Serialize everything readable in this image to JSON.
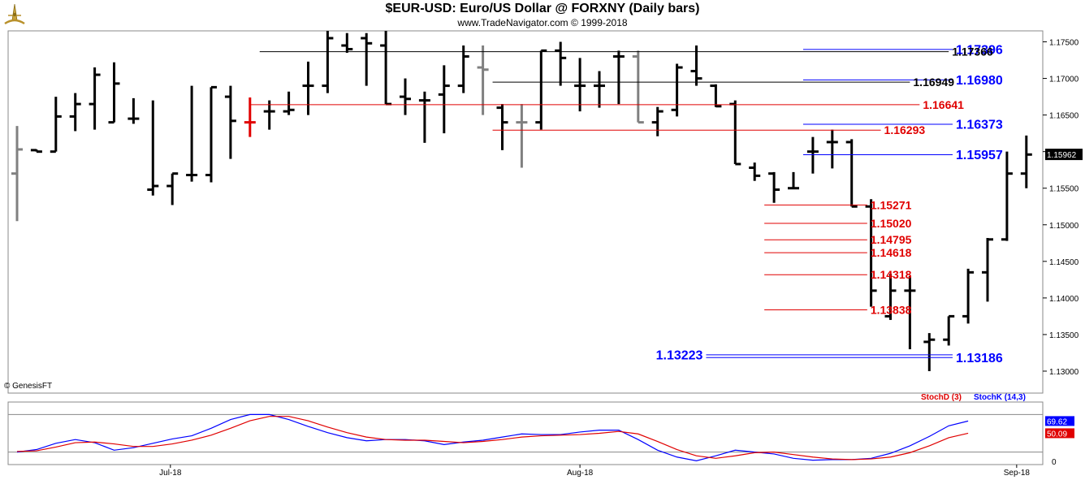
{
  "header": {
    "title": "$EUR-USD:  Euro/US Dollar @ FORXNY  (Daily bars)",
    "subtitle": "www.TradeNavigator.com © 1999-2018"
  },
  "watermark": "© GenesisFT",
  "colors": {
    "blue": "#0000ff",
    "red": "#e00000",
    "black": "#000000",
    "grey": "#808080",
    "frame": "#888888"
  },
  "chart_data": [
    {
      "type": "ohlc-bar",
      "ylim": [
        1.127,
        1.1765
      ],
      "yticks": [
        "1.17500",
        "1.17000",
        "1.16500",
        "1.16000",
        "1.15500",
        "1.15000",
        "1.14500",
        "1.14000",
        "1.13500",
        "1.13000"
      ],
      "ytick_values": [
        1.175,
        1.17,
        1.165,
        1.16,
        1.155,
        1.15,
        1.145,
        1.14,
        1.135,
        1.13
      ],
      "xticks": [
        {
          "label": "Jul-18",
          "index": 7.9
        },
        {
          "label": "Aug-18",
          "index": 29
        },
        {
          "label": "Sep-18",
          "index": 51.5
        }
      ],
      "last_price": "1.15962",
      "bars": [
        {
          "o": 1.157,
          "h": 1.1635,
          "l": 1.1505,
          "c": 1.1603,
          "col": "grey"
        },
        {
          "o": 1.1602,
          "h": 1.1603,
          "l": 1.16,
          "c": 1.16,
          "col": "black"
        },
        {
          "o": 1.16,
          "h": 1.1675,
          "l": 1.16,
          "c": 1.1648,
          "col": "black"
        },
        {
          "o": 1.1648,
          "h": 1.168,
          "l": 1.1628,
          "c": 1.1665,
          "col": "black"
        },
        {
          "o": 1.1665,
          "h": 1.1715,
          "l": 1.163,
          "c": 1.1705,
          "col": "black"
        },
        {
          "o": 1.164,
          "h": 1.1722,
          "l": 1.164,
          "c": 1.1693,
          "col": "black"
        },
        {
          "o": 1.1645,
          "h": 1.1673,
          "l": 1.1638,
          "c": 1.1645,
          "col": "black"
        },
        {
          "o": 1.1548,
          "h": 1.167,
          "l": 1.154,
          "c": 1.1553,
          "col": "black"
        },
        {
          "o": 1.1553,
          "h": 1.157,
          "l": 1.1527,
          "c": 1.157,
          "col": "black"
        },
        {
          "o": 1.1568,
          "h": 1.169,
          "l": 1.1559,
          "c": 1.1568,
          "col": "black"
        },
        {
          "o": 1.1568,
          "h": 1.1688,
          "l": 1.1558,
          "c": 1.1688,
          "col": "black"
        },
        {
          "o": 1.1675,
          "h": 1.169,
          "l": 1.159,
          "c": 1.1642,
          "col": "black"
        },
        {
          "o": 1.164,
          "h": 1.1674,
          "l": 1.162,
          "c": 1.164,
          "col": "red"
        },
        {
          "o": 1.1655,
          "h": 1.167,
          "l": 1.163,
          "c": 1.1655,
          "col": "black"
        },
        {
          "o": 1.1655,
          "h": 1.1682,
          "l": 1.165,
          "c": 1.1657,
          "col": "black"
        },
        {
          "o": 1.169,
          "h": 1.1723,
          "l": 1.165,
          "c": 1.169,
          "col": "black"
        },
        {
          "o": 1.169,
          "h": 1.1765,
          "l": 1.168,
          "c": 1.1755,
          "col": "black"
        },
        {
          "o": 1.1745,
          "h": 1.1762,
          "l": 1.1735,
          "c": 1.174,
          "col": "black"
        },
        {
          "o": 1.1755,
          "h": 1.1762,
          "l": 1.169,
          "c": 1.1748,
          "col": "black"
        },
        {
          "o": 1.1745,
          "h": 1.1765,
          "l": 1.1665,
          "c": 1.1665,
          "col": "black"
        },
        {
          "o": 1.1675,
          "h": 1.17,
          "l": 1.165,
          "c": 1.1672,
          "col": "black"
        },
        {
          "o": 1.167,
          "h": 1.1682,
          "l": 1.1612,
          "c": 1.167,
          "col": "black"
        },
        {
          "o": 1.1678,
          "h": 1.1718,
          "l": 1.1625,
          "c": 1.169,
          "col": "black"
        },
        {
          "o": 1.169,
          "h": 1.1745,
          "l": 1.168,
          "c": 1.173,
          "col": "black"
        },
        {
          "o": 1.1715,
          "h": 1.1745,
          "l": 1.165,
          "c": 1.1712,
          "col": "grey"
        },
        {
          "o": 1.166,
          "h": 1.1665,
          "l": 1.1602,
          "c": 1.164,
          "col": "black"
        },
        {
          "o": 1.164,
          "h": 1.1665,
          "l": 1.1578,
          "c": 1.164,
          "col": "grey"
        },
        {
          "o": 1.164,
          "h": 1.1738,
          "l": 1.163,
          "c": 1.1738,
          "col": "black"
        },
        {
          "o": 1.1738,
          "h": 1.175,
          "l": 1.169,
          "c": 1.1728,
          "col": "black"
        },
        {
          "o": 1.169,
          "h": 1.1728,
          "l": 1.1655,
          "c": 1.169,
          "col": "black"
        },
        {
          "o": 1.169,
          "h": 1.171,
          "l": 1.166,
          "c": 1.169,
          "col": "black"
        },
        {
          "o": 1.173,
          "h": 1.1738,
          "l": 1.1665,
          "c": 1.173,
          "col": "black"
        },
        {
          "o": 1.173,
          "h": 1.1738,
          "l": 1.164,
          "c": 1.164,
          "col": "grey"
        },
        {
          "o": 1.164,
          "h": 1.1661,
          "l": 1.1621,
          "c": 1.1655,
          "col": "black"
        },
        {
          "o": 1.1657,
          "h": 1.172,
          "l": 1.1648,
          "c": 1.1715,
          "col": "black"
        },
        {
          "o": 1.171,
          "h": 1.1745,
          "l": 1.169,
          "c": 1.17,
          "col": "black"
        },
        {
          "o": 1.169,
          "h": 1.1692,
          "l": 1.1661,
          "c": 1.1662,
          "col": "black"
        },
        {
          "o": 1.1665,
          "h": 1.167,
          "l": 1.1583,
          "c": 1.1583,
          "col": "black"
        },
        {
          "o": 1.1578,
          "h": 1.1585,
          "l": 1.156,
          "c": 1.1567,
          "col": "black"
        },
        {
          "o": 1.157,
          "h": 1.1572,
          "l": 1.153,
          "c": 1.1548,
          "col": "black"
        },
        {
          "o": 1.155,
          "h": 1.1572,
          "l": 1.155,
          "c": 1.155,
          "col": "black"
        },
        {
          "o": 1.16,
          "h": 1.162,
          "l": 1.157,
          "c": 1.16,
          "col": "black"
        },
        {
          "o": 1.1613,
          "h": 1.163,
          "l": 1.1577,
          "c": 1.1613,
          "col": "black"
        },
        {
          "o": 1.1613,
          "h": 1.1617,
          "l": 1.1525,
          "c": 1.1525,
          "col": "black"
        },
        {
          "o": 1.1525,
          "h": 1.1535,
          "l": 1.1388,
          "c": 1.141,
          "col": "black"
        },
        {
          "o": 1.1375,
          "h": 1.1433,
          "l": 1.137,
          "c": 1.141,
          "col": "black"
        },
        {
          "o": 1.141,
          "h": 1.143,
          "l": 1.133,
          "c": 1.141,
          "col": "black"
        },
        {
          "o": 1.134,
          "h": 1.1352,
          "l": 1.13,
          "c": 1.1343,
          "col": "black"
        },
        {
          "o": 1.1343,
          "h": 1.1375,
          "l": 1.1335,
          "c": 1.1375,
          "col": "black"
        },
        {
          "o": 1.1375,
          "h": 1.144,
          "l": 1.1365,
          "c": 1.1435,
          "col": "black"
        },
        {
          "o": 1.1435,
          "h": 1.1482,
          "l": 1.1395,
          "c": 1.148,
          "col": "black"
        },
        {
          "o": 1.148,
          "h": 1.16,
          "l": 1.1478,
          "c": 1.157,
          "col": "black"
        },
        {
          "o": 1.157,
          "h": 1.1622,
          "l": 1.155,
          "c": 1.1596,
          "col": "black"
        }
      ],
      "levels": [
        {
          "value": 1.17396,
          "label": "1.17396",
          "color": "blue",
          "from": 40.5,
          "to": 48.2,
          "side": "right"
        },
        {
          "value": 1.17366,
          "label": "1.17366",
          "color": "black",
          "from": 12.5,
          "to": 48.0,
          "side": "right"
        },
        {
          "value": 1.1698,
          "label": "1.16980",
          "color": "blue",
          "from": 40.5,
          "to": 48.2,
          "side": "right"
        },
        {
          "value": 1.16949,
          "label": "1.16949",
          "color": "black",
          "from": 24.5,
          "to": 46.0,
          "side": "right"
        },
        {
          "value": 1.16641,
          "label": "1.16641",
          "color": "red",
          "from": 12.0,
          "to": 46.5,
          "side": "right"
        },
        {
          "value": 1.16373,
          "label": "1.16373",
          "color": "blue",
          "from": 40.5,
          "to": 48.2,
          "side": "right"
        },
        {
          "value": 1.16293,
          "label": "1.16293",
          "color": "red",
          "from": 24.5,
          "to": 44.5,
          "side": "right"
        },
        {
          "value": 1.15957,
          "label": "1.15957",
          "color": "blue",
          "from": 40.5,
          "to": 48.2,
          "side": "right"
        },
        {
          "value": 1.15271,
          "label": "1.15271",
          "color": "red",
          "from": 38.5,
          "to": 43.8,
          "side": "right"
        },
        {
          "value": 1.1502,
          "label": "1.15020",
          "color": "red",
          "from": 38.5,
          "to": 43.8,
          "side": "right"
        },
        {
          "value": 1.14795,
          "label": "1.14795",
          "color": "red",
          "from": 38.5,
          "to": 43.8,
          "side": "right"
        },
        {
          "value": 1.14618,
          "label": "1.14618",
          "color": "red",
          "from": 38.5,
          "to": 43.8,
          "side": "right"
        },
        {
          "value": 1.14318,
          "label": "1.14318",
          "color": "red",
          "from": 38.5,
          "to": 43.8,
          "side": "right"
        },
        {
          "value": 1.13838,
          "label": "1.13838",
          "color": "red",
          "from": 38.5,
          "to": 43.8,
          "side": "right"
        },
        {
          "value": 1.13223,
          "label": "1.13223",
          "color": "blue",
          "from": 35.5,
          "to": 48.2,
          "side": "left"
        },
        {
          "value": 1.13186,
          "label": "1.13186",
          "color": "blue",
          "from": 35.5,
          "to": 48.2,
          "side": "right"
        }
      ]
    },
    {
      "type": "line",
      "legend": [
        "StochD (3)",
        "StochK (14,3)"
      ],
      "ylim": [
        0,
        100
      ],
      "yticks": [
        "0"
      ],
      "last_values": {
        "stochk": "69.62",
        "stochd": "50.09"
      },
      "ref_lines": [
        80,
        20
      ],
      "series": [
        {
          "name": "StochK (14,3)",
          "color": "blue",
          "points": [
            [
              0,
              20
            ],
            [
              1,
              24
            ],
            [
              2,
              34
            ],
            [
              3,
              40
            ],
            [
              4,
              35
            ],
            [
              5,
              23
            ],
            [
              6,
              27
            ],
            [
              7,
              34
            ],
            [
              8,
              41
            ],
            [
              9,
              46
            ],
            [
              10,
              58
            ],
            [
              11,
              72
            ],
            [
              12,
              80
            ],
            [
              13,
              80
            ],
            [
              14,
              72
            ],
            [
              15,
              61
            ],
            [
              16,
              51
            ],
            [
              17,
              43
            ],
            [
              18,
              38
            ],
            [
              19,
              40
            ],
            [
              20,
              40
            ],
            [
              21,
              38
            ],
            [
              22,
              32
            ],
            [
              23,
              36
            ],
            [
              24,
              39
            ],
            [
              25,
              44
            ],
            [
              26,
              49
            ],
            [
              27,
              48
            ],
            [
              28,
              48
            ],
            [
              29,
              52
            ],
            [
              30,
              55
            ],
            [
              31,
              55
            ],
            [
              32,
              40
            ],
            [
              33,
              23
            ],
            [
              34,
              12
            ],
            [
              35,
              6
            ],
            [
              36,
              14
            ],
            [
              37,
              23
            ],
            [
              38,
              20
            ],
            [
              39,
              17
            ],
            [
              40,
              10
            ],
            [
              41,
              7
            ],
            [
              42,
              8
            ],
            [
              43,
              8
            ],
            [
              44,
              10
            ],
            [
              45,
              18
            ],
            [
              46,
              30
            ],
            [
              47,
              45
            ],
            [
              48,
              62
            ],
            [
              49,
              69.62
            ]
          ]
        },
        {
          "name": "StochD (3)",
          "color": "red",
          "points": [
            [
              0,
              21
            ],
            [
              1,
              22
            ],
            [
              2,
              28
            ],
            [
              3,
              35
            ],
            [
              4,
              36
            ],
            [
              5,
              33
            ],
            [
              6,
              29
            ],
            [
              7,
              29
            ],
            [
              8,
              33
            ],
            [
              9,
              39
            ],
            [
              10,
              47
            ],
            [
              11,
              58
            ],
            [
              12,
              70
            ],
            [
              13,
              77
            ],
            [
              14,
              77
            ],
            [
              15,
              70
            ],
            [
              16,
              60
            ],
            [
              17,
              51
            ],
            [
              18,
              44
            ],
            [
              19,
              40
            ],
            [
              20,
              39
            ],
            [
              21,
              39
            ],
            [
              22,
              37
            ],
            [
              23,
              35
            ],
            [
              24,
              37
            ],
            [
              25,
              40
            ],
            [
              26,
              44
            ],
            [
              27,
              46
            ],
            [
              28,
              47
            ],
            [
              29,
              48
            ],
            [
              30,
              50
            ],
            [
              31,
              53
            ],
            [
              32,
              49
            ],
            [
              33,
              37
            ],
            [
              34,
              24
            ],
            [
              35,
              14
            ],
            [
              36,
              10
            ],
            [
              37,
              14
            ],
            [
              38,
              19
            ],
            [
              39,
              20
            ],
            [
              40,
              16
            ],
            [
              41,
              12
            ],
            [
              42,
              9
            ],
            [
              43,
              8
            ],
            [
              44,
              9
            ],
            [
              45,
              12
            ],
            [
              46,
              19
            ],
            [
              47,
              30
            ],
            [
              48,
              43
            ],
            [
              49,
              50.09
            ]
          ]
        }
      ]
    }
  ]
}
